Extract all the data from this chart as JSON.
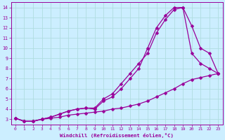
{
  "xlabel": "Windchill (Refroidissement éolien,°C)",
  "ylabel": "",
  "bg_color": "#cceeff",
  "line_color": "#990099",
  "grid_color": "#b0dde0",
  "line1_x": [
    0,
    1,
    2,
    3,
    4,
    5,
    6,
    7,
    8,
    9,
    10,
    11,
    12,
    13,
    14,
    15,
    16,
    17,
    18,
    19,
    20,
    21,
    22,
    23
  ],
  "line1_y": [
    3.1,
    2.8,
    2.8,
    3.0,
    3.1,
    3.2,
    3.4,
    3.5,
    3.6,
    3.7,
    3.8,
    4.0,
    4.1,
    4.3,
    4.5,
    4.8,
    5.2,
    5.6,
    6.0,
    6.5,
    6.9,
    7.1,
    7.3,
    7.5
  ],
  "line2_x": [
    0,
    1,
    2,
    3,
    4,
    5,
    6,
    7,
    8,
    9,
    10,
    11,
    12,
    13,
    14,
    15,
    16,
    17,
    18,
    19,
    20,
    21,
    22,
    23
  ],
  "line2_y": [
    3.1,
    2.8,
    2.8,
    3.0,
    3.2,
    3.5,
    3.8,
    4.0,
    4.1,
    4.1,
    5.0,
    5.5,
    6.5,
    7.5,
    8.5,
    9.5,
    11.5,
    12.8,
    13.8,
    14.0,
    12.2,
    10.0,
    9.5,
    7.5
  ],
  "line3_x": [
    0,
    1,
    2,
    3,
    4,
    5,
    6,
    7,
    8,
    9,
    10,
    11,
    12,
    13,
    14,
    15,
    16,
    17,
    18,
    19,
    20,
    21,
    22,
    23
  ],
  "line3_y": [
    3.1,
    2.8,
    2.8,
    3.0,
    3.2,
    3.5,
    3.8,
    4.0,
    4.1,
    4.0,
    4.8,
    5.2,
    6.0,
    7.0,
    8.0,
    10.0,
    12.0,
    13.2,
    14.0,
    14.0,
    9.5,
    8.5,
    8.0,
    7.5
  ],
  "xlim": [
    -0.5,
    23.5
  ],
  "ylim": [
    2.5,
    14.5
  ],
  "xticks": [
    0,
    1,
    2,
    3,
    4,
    5,
    6,
    7,
    8,
    9,
    10,
    11,
    12,
    13,
    14,
    15,
    16,
    17,
    18,
    19,
    20,
    21,
    22,
    23
  ],
  "yticks": [
    3,
    4,
    5,
    6,
    7,
    8,
    9,
    10,
    11,
    12,
    13,
    14
  ]
}
